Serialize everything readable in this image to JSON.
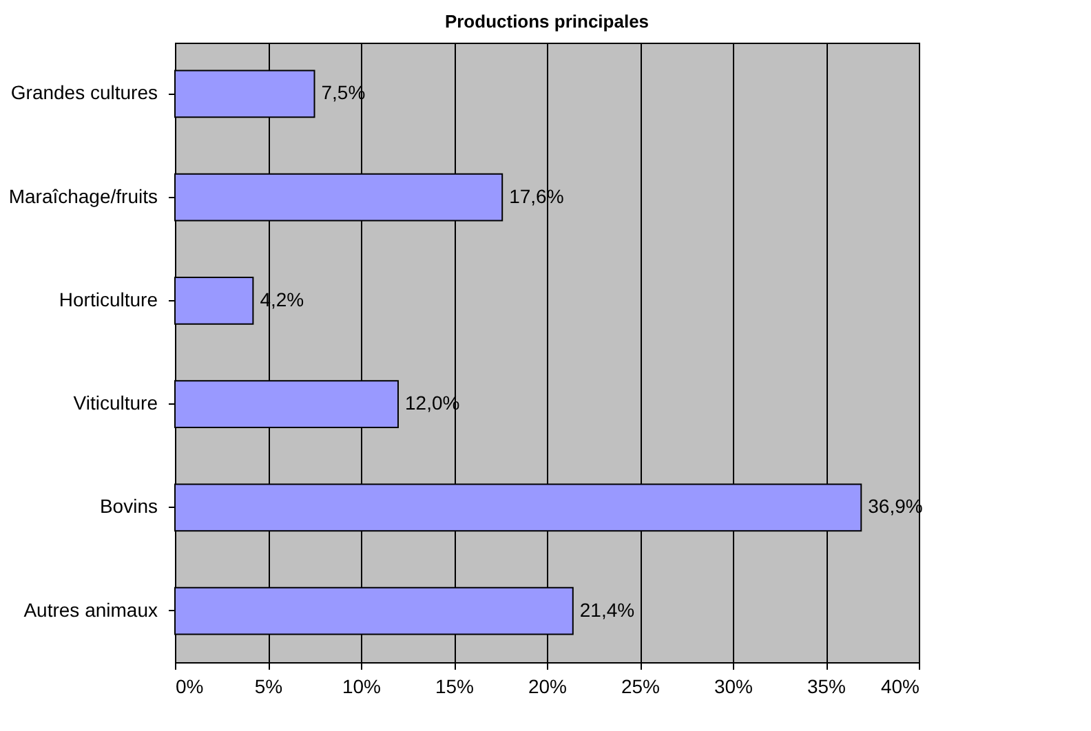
{
  "chart_data": {
    "type": "bar",
    "orientation": "horizontal",
    "title": "Productions principales",
    "categories": [
      "Grandes cultures",
      "Maraîchage/fruits",
      "Horticulture",
      "Viticulture",
      "Bovins",
      "Autres animaux"
    ],
    "series": [
      {
        "color": "#9999ff",
        "values": [
          7.5,
          17.6,
          4.2,
          12.0,
          36.9,
          21.4
        ]
      }
    ],
    "value_labels": [
      "7,5%",
      "17,6%",
      "4,2%",
      "12,0%",
      "36,9%",
      "21,4%"
    ],
    "xlim": [
      0,
      40
    ],
    "xticks": [
      {
        "value": 0,
        "label": "0%"
      },
      {
        "value": 5,
        "label": "5%"
      },
      {
        "value": 10,
        "label": "10%"
      },
      {
        "value": 15,
        "label": "15%"
      },
      {
        "value": 20,
        "label": "20%"
      },
      {
        "value": 25,
        "label": "25%"
      },
      {
        "value": 30,
        "label": "30%"
      },
      {
        "value": 35,
        "label": "35%"
      },
      {
        "value": 40,
        "label": "40%"
      }
    ],
    "grid": "x"
  }
}
